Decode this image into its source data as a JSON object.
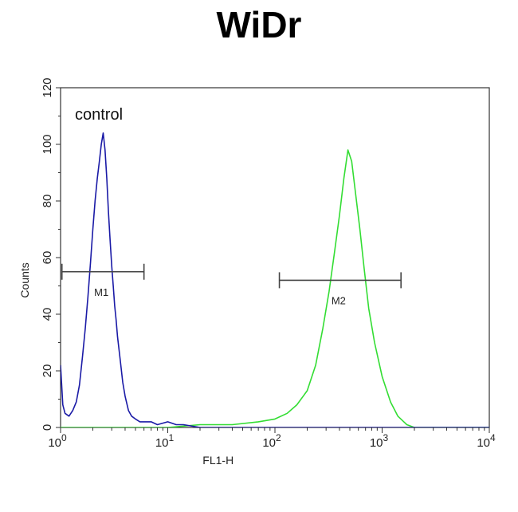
{
  "chart_data": {
    "type": "line",
    "title": "WiDr",
    "xlabel": "FL1-H",
    "ylabel": "Counts",
    "x_scale": "log",
    "xlim": [
      1,
      10000
    ],
    "ylim": [
      0,
      120
    ],
    "x_ticks": [
      1,
      10,
      100,
      1000,
      10000
    ],
    "x_tick_labels": [
      {
        "base": "10",
        "exp": "0"
      },
      {
        "base": "10",
        "exp": "1"
      },
      {
        "base": "10",
        "exp": "2"
      },
      {
        "base": "10",
        "exp": "3"
      },
      {
        "base": "10",
        "exp": "4"
      }
    ],
    "y_ticks": [
      0,
      20,
      40,
      60,
      80,
      100,
      120
    ],
    "y_tick_labels": [
      "0",
      "20",
      "40",
      "60",
      "80",
      "100",
      "120"
    ],
    "grid": false,
    "annotation": "control",
    "series": [
      {
        "color": "#1a1aa6",
        "x": [
          1.0,
          1.05,
          1.1,
          1.2,
          1.3,
          1.4,
          1.5,
          1.6,
          1.7,
          1.8,
          1.9,
          2.0,
          2.1,
          2.2,
          2.3,
          2.4,
          2.5,
          2.6,
          2.7,
          2.8,
          2.9,
          3.0,
          3.1,
          3.2,
          3.3,
          3.4,
          3.6,
          3.8,
          4.0,
          4.3,
          4.6,
          5.0,
          5.5,
          6.0,
          7.0,
          8.0,
          10.0,
          12.0,
          14.0,
          20.0,
          40.0,
          100.0,
          1000.0,
          10000.0
        ],
        "y": [
          22,
          8,
          5,
          4,
          6,
          9,
          15,
          25,
          35,
          46,
          58,
          70,
          80,
          88,
          94,
          100,
          104,
          98,
          88,
          76,
          66,
          57,
          50,
          43,
          38,
          32,
          24,
          16,
          11,
          6,
          4,
          3,
          2,
          2,
          2,
          1,
          2,
          1,
          1,
          0,
          0,
          0,
          0,
          0
        ]
      },
      {
        "color": "#33dd33",
        "x": [
          1.0,
          3.0,
          10.0,
          20.0,
          40.0,
          70.0,
          100.0,
          130.0,
          160.0,
          200.0,
          240.0,
          280.0,
          320.0,
          360.0,
          400.0,
          440.0,
          480.0,
          520.0,
          560.0,
          620.0,
          680.0,
          750.0,
          850.0,
          1000.0,
          1200.0,
          1400.0,
          1700.0,
          2000.0,
          3000.0,
          10000.0
        ],
        "y": [
          0,
          0,
          0,
          1,
          1,
          2,
          3,
          5,
          8,
          13,
          22,
          35,
          48,
          62,
          75,
          88,
          98,
          94,
          84,
          70,
          56,
          42,
          30,
          18,
          9,
          4,
          1,
          0,
          0,
          0
        ]
      }
    ],
    "markers": [
      {
        "label": "M1",
        "x_range": [
          1.03,
          6.0
        ],
        "y": 55
      },
      {
        "label": "M2",
        "x_range": [
          110,
          1500
        ],
        "y": 52
      }
    ]
  }
}
